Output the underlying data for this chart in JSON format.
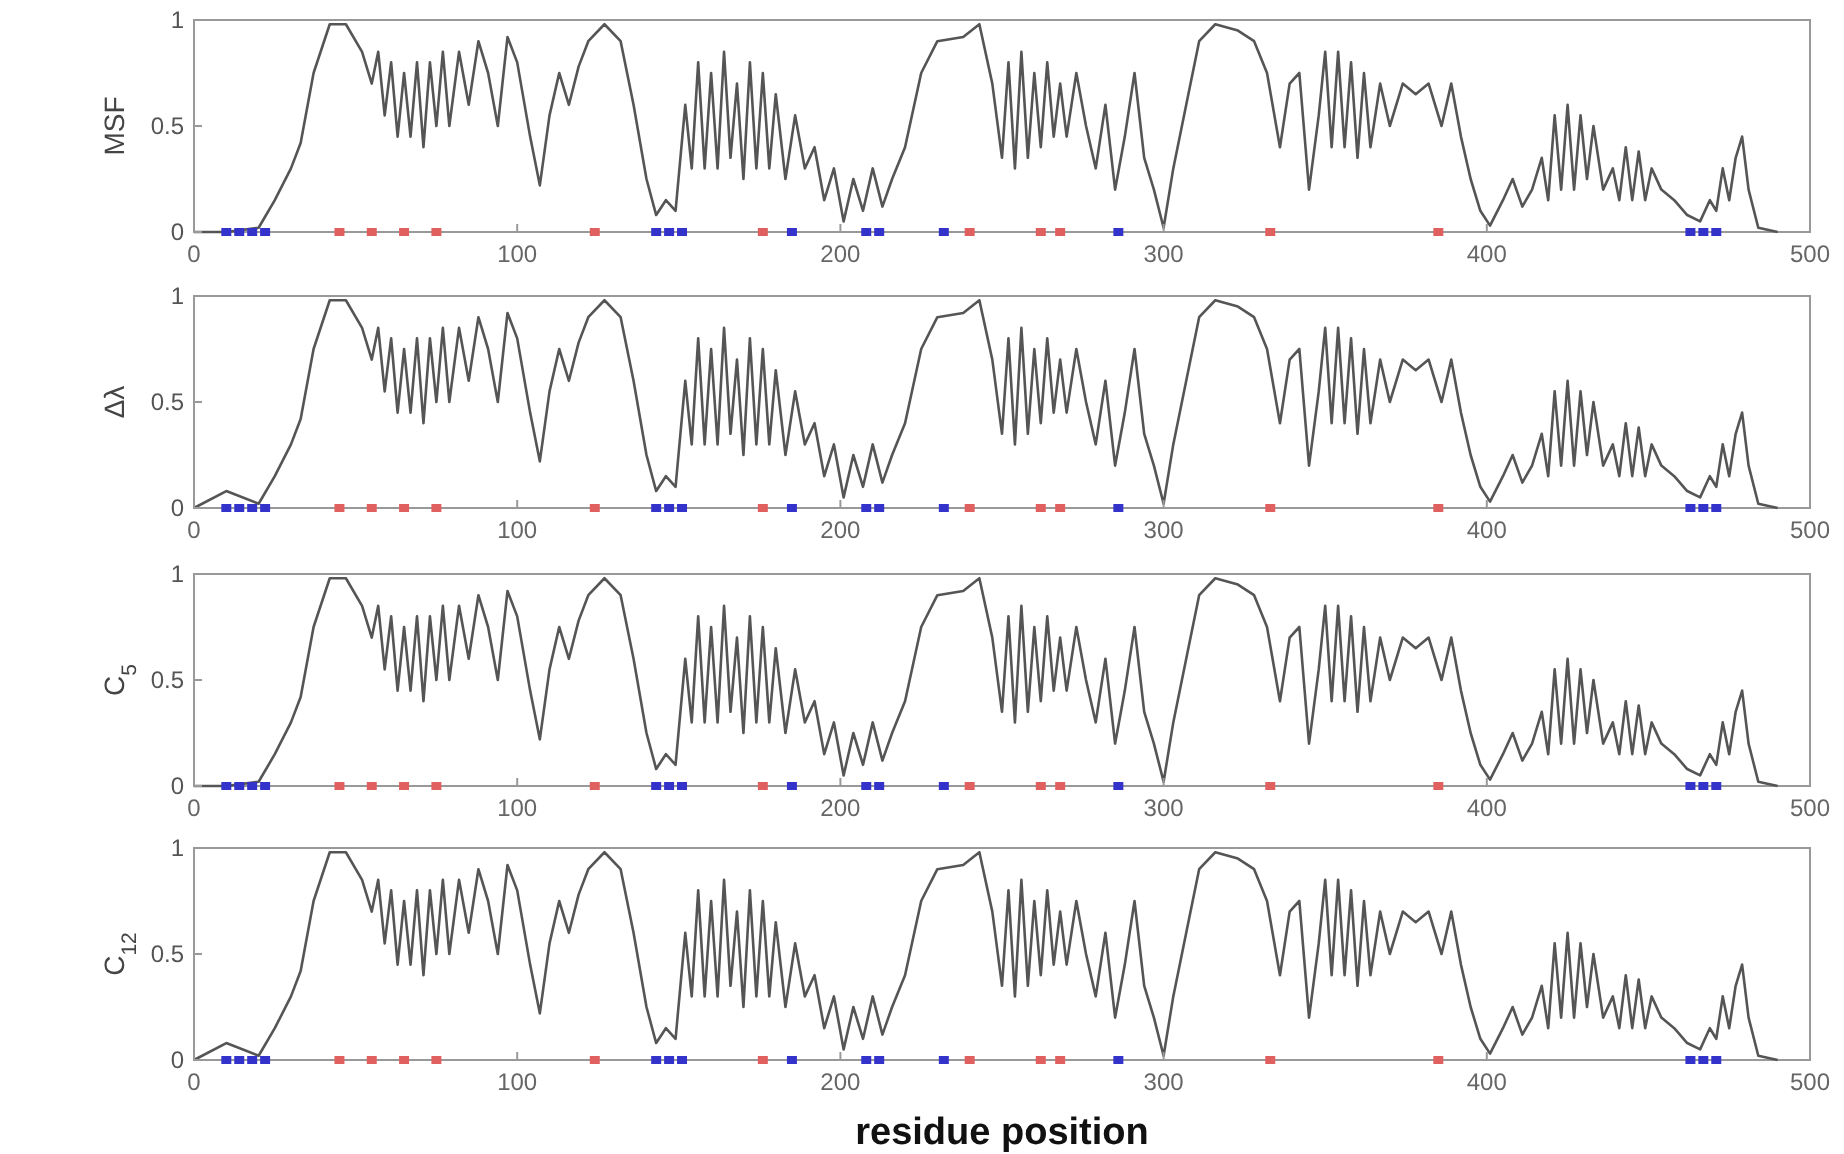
{
  "chart_data": [
    {
      "type": "line",
      "ylabel": "MSF",
      "xlim": [
        0,
        500
      ],
      "xticks": [
        0,
        100,
        200,
        300,
        400,
        500
      ],
      "ylim": [
        0,
        1
      ],
      "yticks": [
        0,
        0.5,
        1
      ],
      "x": [
        0,
        10,
        20,
        25,
        30,
        33,
        37,
        42,
        47,
        52,
        55,
        57,
        59,
        61,
        63,
        65,
        67,
        69,
        71,
        73,
        75,
        77,
        79,
        82,
        85,
        88,
        91,
        94,
        97,
        100,
        104,
        107,
        110,
        113,
        116,
        119,
        122,
        127,
        132,
        136,
        140,
        143,
        146,
        149,
        152,
        154,
        156,
        158,
        160,
        162,
        164,
        166,
        168,
        170,
        172,
        174,
        176,
        178,
        180,
        183,
        186,
        189,
        192,
        195,
        198,
        201,
        204,
        207,
        210,
        213,
        216,
        220,
        225,
        230,
        238,
        243,
        247,
        250,
        252,
        254,
        256,
        258,
        260,
        262,
        264,
        266,
        268,
        270,
        273,
        276,
        279,
        282,
        285,
        288,
        291,
        294,
        297,
        300,
        303,
        307,
        311,
        316,
        323,
        328,
        332,
        336,
        339,
        342,
        345,
        348,
        350,
        352,
        354,
        356,
        358,
        360,
        362,
        364,
        367,
        370,
        374,
        378,
        382,
        386,
        389,
        392,
        395,
        398,
        401,
        405,
        408,
        411,
        414,
        417,
        419,
        421,
        423,
        425,
        427,
        429,
        431,
        433,
        436,
        439,
        441,
        443,
        445,
        447,
        449,
        451,
        454,
        458,
        462,
        466,
        469,
        471,
        473,
        475,
        477,
        479,
        481,
        484,
        490
      ],
      "series": [
        {
          "color": "#555555",
          "values": [
            0,
            0,
            0.02,
            0.15,
            0.3,
            0.42,
            0.75,
            0.98,
            0.98,
            0.85,
            0.7,
            0.85,
            0.55,
            0.8,
            0.45,
            0.75,
            0.45,
            0.8,
            0.4,
            0.8,
            0.5,
            0.85,
            0.5,
            0.85,
            0.6,
            0.9,
            0.75,
            0.5,
            0.92,
            0.8,
            0.45,
            0.22,
            0.55,
            0.75,
            0.6,
            0.78,
            0.9,
            0.98,
            0.9,
            0.6,
            0.25,
            0.08,
            0.15,
            0.1,
            0.6,
            0.3,
            0.8,
            0.3,
            0.75,
            0.3,
            0.85,
            0.35,
            0.7,
            0.25,
            0.8,
            0.3,
            0.75,
            0.3,
            0.65,
            0.25,
            0.55,
            0.3,
            0.4,
            0.15,
            0.3,
            0.05,
            0.25,
            0.1,
            0.3,
            0.12,
            0.25,
            0.4,
            0.75,
            0.9,
            0.92,
            0.98,
            0.7,
            0.35,
            0.8,
            0.3,
            0.85,
            0.35,
            0.75,
            0.4,
            0.8,
            0.45,
            0.7,
            0.45,
            0.75,
            0.5,
            0.3,
            0.6,
            0.2,
            0.45,
            0.75,
            0.35,
            0.2,
            0.02,
            0.3,
            0.6,
            0.9,
            0.98,
            0.95,
            0.9,
            0.75,
            0.4,
            0.7,
            0.75,
            0.2,
            0.55,
            0.85,
            0.4,
            0.85,
            0.4,
            0.8,
            0.35,
            0.75,
            0.4,
            0.7,
            0.5,
            0.7,
            0.65,
            0.7,
            0.5,
            0.7,
            0.45,
            0.25,
            0.1,
            0.03,
            0.15,
            0.25,
            0.12,
            0.2,
            0.35,
            0.15,
            0.55,
            0.2,
            0.6,
            0.2,
            0.55,
            0.25,
            0.5,
            0.2,
            0.3,
            0.15,
            0.4,
            0.15,
            0.38,
            0.15,
            0.3,
            0.2,
            0.15,
            0.08,
            0.05,
            0.15,
            0.1,
            0.3,
            0.15,
            0.35,
            0.45,
            0.2,
            0.02,
            0
          ]
        },
        {
          "type": "scatter",
          "marker": "square",
          "color": "#3333cc",
          "x": [
            10,
            14,
            18,
            22,
            143,
            147,
            151,
            185,
            208,
            212,
            232,
            286,
            463,
            467,
            471
          ],
          "values": [
            0,
            0,
            0,
            0,
            0,
            0,
            0,
            0,
            0,
            0,
            0,
            0,
            0,
            0,
            0
          ]
        },
        {
          "type": "scatter",
          "marker": "square",
          "color": "#e06060",
          "x": [
            45,
            55,
            65,
            75,
            124,
            176,
            240,
            262,
            268,
            333,
            385
          ],
          "values": [
            0,
            0,
            0,
            0,
            0,
            0,
            0,
            0,
            0,
            0,
            0
          ]
        }
      ]
    },
    {
      "type": "line",
      "ylabel": "Δλ",
      "xlim": [
        0,
        500
      ],
      "xticks": [
        0,
        100,
        200,
        300,
        400,
        500
      ],
      "ylim": [
        0,
        1
      ],
      "yticks": [
        0,
        0.5,
        1
      ],
      "x": [
        0,
        10,
        20,
        25,
        30,
        33,
        37,
        42,
        47,
        52,
        55,
        57,
        59,
        61,
        63,
        65,
        67,
        69,
        71,
        73,
        75,
        77,
        79,
        82,
        85,
        88,
        91,
        94,
        97,
        100,
        104,
        107,
        110,
        113,
        116,
        119,
        122,
        127,
        132,
        136,
        140,
        143,
        146,
        149,
        152,
        154,
        156,
        158,
        160,
        162,
        164,
        166,
        168,
        170,
        172,
        174,
        176,
        178,
        180,
        183,
        186,
        189,
        192,
        195,
        198,
        201,
        204,
        207,
        210,
        213,
        216,
        220,
        225,
        230,
        238,
        243,
        247,
        250,
        252,
        254,
        256,
        258,
        260,
        262,
        264,
        266,
        268,
        270,
        273,
        276,
        279,
        282,
        285,
        288,
        291,
        294,
        297,
        300,
        303,
        307,
        311,
        316,
        323,
        328,
        332,
        336,
        339,
        342,
        345,
        348,
        350,
        352,
        354,
        356,
        358,
        360,
        362,
        364,
        367,
        370,
        374,
        378,
        382,
        386,
        389,
        392,
        395,
        398,
        401,
        405,
        408,
        411,
        414,
        417,
        419,
        421,
        423,
        425,
        427,
        429,
        431,
        433,
        436,
        439,
        441,
        443,
        445,
        447,
        449,
        451,
        454,
        458,
        462,
        466,
        469,
        471,
        473,
        475,
        477,
        479,
        481,
        484,
        490
      ],
      "series": [
        {
          "color": "#555555",
          "values": [
            0,
            0.08,
            0.02,
            0.15,
            0.3,
            0.42,
            0.75,
            0.98,
            0.98,
            0.85,
            0.7,
            0.85,
            0.55,
            0.8,
            0.45,
            0.75,
            0.45,
            0.8,
            0.4,
            0.8,
            0.5,
            0.85,
            0.5,
            0.85,
            0.6,
            0.9,
            0.75,
            0.5,
            0.92,
            0.8,
            0.45,
            0.22,
            0.55,
            0.75,
            0.6,
            0.78,
            0.9,
            0.98,
            0.9,
            0.6,
            0.25,
            0.08,
            0.15,
            0.1,
            0.6,
            0.3,
            0.8,
            0.3,
            0.75,
            0.3,
            0.85,
            0.35,
            0.7,
            0.25,
            0.8,
            0.3,
            0.75,
            0.3,
            0.65,
            0.25,
            0.55,
            0.3,
            0.4,
            0.15,
            0.3,
            0.05,
            0.25,
            0.1,
            0.3,
            0.12,
            0.25,
            0.4,
            0.75,
            0.9,
            0.92,
            0.98,
            0.7,
            0.35,
            0.8,
            0.3,
            0.85,
            0.35,
            0.75,
            0.4,
            0.8,
            0.45,
            0.7,
            0.45,
            0.75,
            0.5,
            0.3,
            0.6,
            0.2,
            0.45,
            0.75,
            0.35,
            0.2,
            0.02,
            0.3,
            0.6,
            0.9,
            0.98,
            0.95,
            0.9,
            0.75,
            0.4,
            0.7,
            0.75,
            0.2,
            0.55,
            0.85,
            0.4,
            0.85,
            0.4,
            0.8,
            0.35,
            0.75,
            0.4,
            0.7,
            0.5,
            0.7,
            0.65,
            0.7,
            0.5,
            0.7,
            0.45,
            0.25,
            0.1,
            0.03,
            0.15,
            0.25,
            0.12,
            0.2,
            0.35,
            0.15,
            0.55,
            0.2,
            0.6,
            0.2,
            0.55,
            0.25,
            0.5,
            0.2,
            0.3,
            0.15,
            0.4,
            0.15,
            0.38,
            0.15,
            0.3,
            0.2,
            0.15,
            0.08,
            0.05,
            0.15,
            0.1,
            0.3,
            0.15,
            0.35,
            0.45,
            0.2,
            0.02,
            0
          ]
        },
        {
          "type": "scatter",
          "marker": "square",
          "color": "#3333cc",
          "x": [
            10,
            14,
            18,
            22,
            143,
            147,
            151,
            185,
            208,
            212,
            232,
            286,
            463,
            467,
            471
          ],
          "values": [
            0,
            0,
            0,
            0,
            0,
            0,
            0,
            0,
            0,
            0,
            0,
            0,
            0,
            0,
            0
          ]
        },
        {
          "type": "scatter",
          "marker": "square",
          "color": "#e06060",
          "x": [
            45,
            55,
            65,
            75,
            124,
            176,
            240,
            262,
            268,
            333,
            385
          ],
          "values": [
            0,
            0,
            0,
            0,
            0,
            0,
            0,
            0,
            0,
            0,
            0
          ]
        }
      ]
    },
    {
      "type": "line",
      "ylabel": "C$_{5}$",
      "xlim": [
        0,
        500
      ],
      "xticks": [
        0,
        100,
        200,
        300,
        400,
        500
      ],
      "ylim": [
        0,
        1
      ],
      "yticks": [
        0,
        0.5,
        1
      ],
      "x": [
        0,
        10,
        20,
        25,
        30,
        33,
        37,
        42,
        47,
        52,
        55,
        57,
        59,
        61,
        63,
        65,
        67,
        69,
        71,
        73,
        75,
        77,
        79,
        82,
        85,
        88,
        91,
        94,
        97,
        100,
        104,
        107,
        110,
        113,
        116,
        119,
        122,
        127,
        132,
        136,
        140,
        143,
        146,
        149,
        152,
        154,
        156,
        158,
        160,
        162,
        164,
        166,
        168,
        170,
        172,
        174,
        176,
        178,
        180,
        183,
        186,
        189,
        192,
        195,
        198,
        201,
        204,
        207,
        210,
        213,
        216,
        220,
        225,
        230,
        238,
        243,
        247,
        250,
        252,
        254,
        256,
        258,
        260,
        262,
        264,
        266,
        268,
        270,
        273,
        276,
        279,
        282,
        285,
        288,
        291,
        294,
        297,
        300,
        303,
        307,
        311,
        316,
        323,
        328,
        332,
        336,
        339,
        342,
        345,
        348,
        350,
        352,
        354,
        356,
        358,
        360,
        362,
        364,
        367,
        370,
        374,
        378,
        382,
        386,
        389,
        392,
        395,
        398,
        401,
        405,
        408,
        411,
        414,
        417,
        419,
        421,
        423,
        425,
        427,
        429,
        431,
        433,
        436,
        439,
        441,
        443,
        445,
        447,
        449,
        451,
        454,
        458,
        462,
        466,
        469,
        471,
        473,
        475,
        477,
        479,
        481,
        484,
        490
      ],
      "series": [
        {
          "color": "#555555",
          "values": [
            0,
            0,
            0.02,
            0.15,
            0.3,
            0.42,
            0.75,
            0.98,
            0.98,
            0.85,
            0.7,
            0.85,
            0.55,
            0.8,
            0.45,
            0.75,
            0.45,
            0.8,
            0.4,
            0.8,
            0.5,
            0.85,
            0.5,
            0.85,
            0.6,
            0.9,
            0.75,
            0.5,
            0.92,
            0.8,
            0.45,
            0.22,
            0.55,
            0.75,
            0.6,
            0.78,
            0.9,
            0.98,
            0.9,
            0.6,
            0.25,
            0.08,
            0.15,
            0.1,
            0.6,
            0.3,
            0.8,
            0.3,
            0.75,
            0.3,
            0.85,
            0.35,
            0.7,
            0.25,
            0.8,
            0.3,
            0.75,
            0.3,
            0.65,
            0.25,
            0.55,
            0.3,
            0.4,
            0.15,
            0.3,
            0.05,
            0.25,
            0.1,
            0.3,
            0.12,
            0.25,
            0.4,
            0.75,
            0.9,
            0.92,
            0.98,
            0.7,
            0.35,
            0.8,
            0.3,
            0.85,
            0.35,
            0.75,
            0.4,
            0.8,
            0.45,
            0.7,
            0.45,
            0.75,
            0.5,
            0.3,
            0.6,
            0.2,
            0.45,
            0.75,
            0.35,
            0.2,
            0.02,
            0.3,
            0.6,
            0.9,
            0.98,
            0.95,
            0.9,
            0.75,
            0.4,
            0.7,
            0.75,
            0.2,
            0.55,
            0.85,
            0.4,
            0.85,
            0.4,
            0.8,
            0.35,
            0.75,
            0.4,
            0.7,
            0.5,
            0.7,
            0.65,
            0.7,
            0.5,
            0.7,
            0.45,
            0.25,
            0.1,
            0.03,
            0.15,
            0.25,
            0.12,
            0.2,
            0.35,
            0.15,
            0.55,
            0.2,
            0.6,
            0.2,
            0.55,
            0.25,
            0.5,
            0.2,
            0.3,
            0.15,
            0.4,
            0.15,
            0.38,
            0.15,
            0.3,
            0.2,
            0.15,
            0.08,
            0.05,
            0.15,
            0.1,
            0.3,
            0.15,
            0.35,
            0.45,
            0.2,
            0.02,
            0
          ]
        },
        {
          "type": "scatter",
          "marker": "square",
          "color": "#3333cc",
          "x": [
            10,
            14,
            18,
            22,
            143,
            147,
            151,
            185,
            208,
            212,
            232,
            286,
            463,
            467,
            471
          ],
          "values": [
            0,
            0,
            0,
            0,
            0,
            0,
            0,
            0,
            0,
            0,
            0,
            0,
            0,
            0,
            0
          ]
        },
        {
          "type": "scatter",
          "marker": "square",
          "color": "#e06060",
          "x": [
            45,
            55,
            65,
            75,
            124,
            176,
            240,
            262,
            268,
            333,
            385
          ],
          "values": [
            0,
            0,
            0,
            0,
            0,
            0,
            0,
            0,
            0,
            0,
            0
          ]
        }
      ]
    },
    {
      "type": "line",
      "ylabel": "C$_{12}$",
      "xlabel": "residue position",
      "xlim": [
        0,
        500
      ],
      "xticks": [
        0,
        100,
        200,
        300,
        400,
        500
      ],
      "ylim": [
        0,
        1
      ],
      "yticks": [
        0,
        0.5,
        1
      ],
      "x": [
        0,
        10,
        20,
        25,
        30,
        33,
        37,
        42,
        47,
        52,
        55,
        57,
        59,
        61,
        63,
        65,
        67,
        69,
        71,
        73,
        75,
        77,
        79,
        82,
        85,
        88,
        91,
        94,
        97,
        100,
        104,
        107,
        110,
        113,
        116,
        119,
        122,
        127,
        132,
        136,
        140,
        143,
        146,
        149,
        152,
        154,
        156,
        158,
        160,
        162,
        164,
        166,
        168,
        170,
        172,
        174,
        176,
        178,
        180,
        183,
        186,
        189,
        192,
        195,
        198,
        201,
        204,
        207,
        210,
        213,
        216,
        220,
        225,
        230,
        238,
        243,
        247,
        250,
        252,
        254,
        256,
        258,
        260,
        262,
        264,
        266,
        268,
        270,
        273,
        276,
        279,
        282,
        285,
        288,
        291,
        294,
        297,
        300,
        303,
        307,
        311,
        316,
        323,
        328,
        332,
        336,
        339,
        342,
        345,
        348,
        350,
        352,
        354,
        356,
        358,
        360,
        362,
        364,
        367,
        370,
        374,
        378,
        382,
        386,
        389,
        392,
        395,
        398,
        401,
        405,
        408,
        411,
        414,
        417,
        419,
        421,
        423,
        425,
        427,
        429,
        431,
        433,
        436,
        439,
        441,
        443,
        445,
        447,
        449,
        451,
        454,
        458,
        462,
        466,
        469,
        471,
        473,
        475,
        477,
        479,
        481,
        484,
        490
      ],
      "series": [
        {
          "color": "#555555",
          "values": [
            0,
            0.08,
            0.02,
            0.15,
            0.3,
            0.42,
            0.75,
            0.98,
            0.98,
            0.85,
            0.7,
            0.85,
            0.55,
            0.8,
            0.45,
            0.75,
            0.45,
            0.8,
            0.4,
            0.8,
            0.5,
            0.85,
            0.5,
            0.85,
            0.6,
            0.9,
            0.75,
            0.5,
            0.92,
            0.8,
            0.45,
            0.22,
            0.55,
            0.75,
            0.6,
            0.78,
            0.9,
            0.98,
            0.9,
            0.6,
            0.25,
            0.08,
            0.15,
            0.1,
            0.6,
            0.3,
            0.8,
            0.3,
            0.75,
            0.3,
            0.85,
            0.35,
            0.7,
            0.25,
            0.8,
            0.3,
            0.75,
            0.3,
            0.65,
            0.25,
            0.55,
            0.3,
            0.4,
            0.15,
            0.3,
            0.05,
            0.25,
            0.1,
            0.3,
            0.12,
            0.25,
            0.4,
            0.75,
            0.9,
            0.92,
            0.98,
            0.7,
            0.35,
            0.8,
            0.3,
            0.85,
            0.35,
            0.75,
            0.4,
            0.8,
            0.45,
            0.7,
            0.45,
            0.75,
            0.5,
            0.3,
            0.6,
            0.2,
            0.45,
            0.75,
            0.35,
            0.2,
            0.02,
            0.3,
            0.6,
            0.9,
            0.98,
            0.95,
            0.9,
            0.75,
            0.4,
            0.7,
            0.75,
            0.2,
            0.55,
            0.85,
            0.4,
            0.85,
            0.4,
            0.8,
            0.35,
            0.75,
            0.4,
            0.7,
            0.5,
            0.7,
            0.65,
            0.7,
            0.5,
            0.7,
            0.45,
            0.25,
            0.1,
            0.03,
            0.15,
            0.25,
            0.12,
            0.2,
            0.35,
            0.15,
            0.55,
            0.2,
            0.6,
            0.2,
            0.55,
            0.25,
            0.5,
            0.2,
            0.3,
            0.15,
            0.4,
            0.15,
            0.38,
            0.15,
            0.3,
            0.2,
            0.15,
            0.08,
            0.05,
            0.15,
            0.1,
            0.3,
            0.15,
            0.35,
            0.45,
            0.2,
            0.02,
            0
          ]
        },
        {
          "type": "scatter",
          "marker": "square",
          "color": "#3333cc",
          "x": [
            10,
            14,
            18,
            22,
            143,
            147,
            151,
            185,
            208,
            212,
            232,
            286,
            463,
            467,
            471
          ],
          "values": [
            0,
            0,
            0,
            0,
            0,
            0,
            0,
            0,
            0,
            0,
            0,
            0,
            0,
            0,
            0
          ]
        },
        {
          "type": "scatter",
          "marker": "square",
          "color": "#e06060",
          "x": [
            45,
            55,
            65,
            75,
            124,
            176,
            240,
            262,
            268,
            333,
            385
          ],
          "values": [
            0,
            0,
            0,
            0,
            0,
            0,
            0,
            0,
            0,
            0,
            0
          ]
        }
      ]
    }
  ]
}
